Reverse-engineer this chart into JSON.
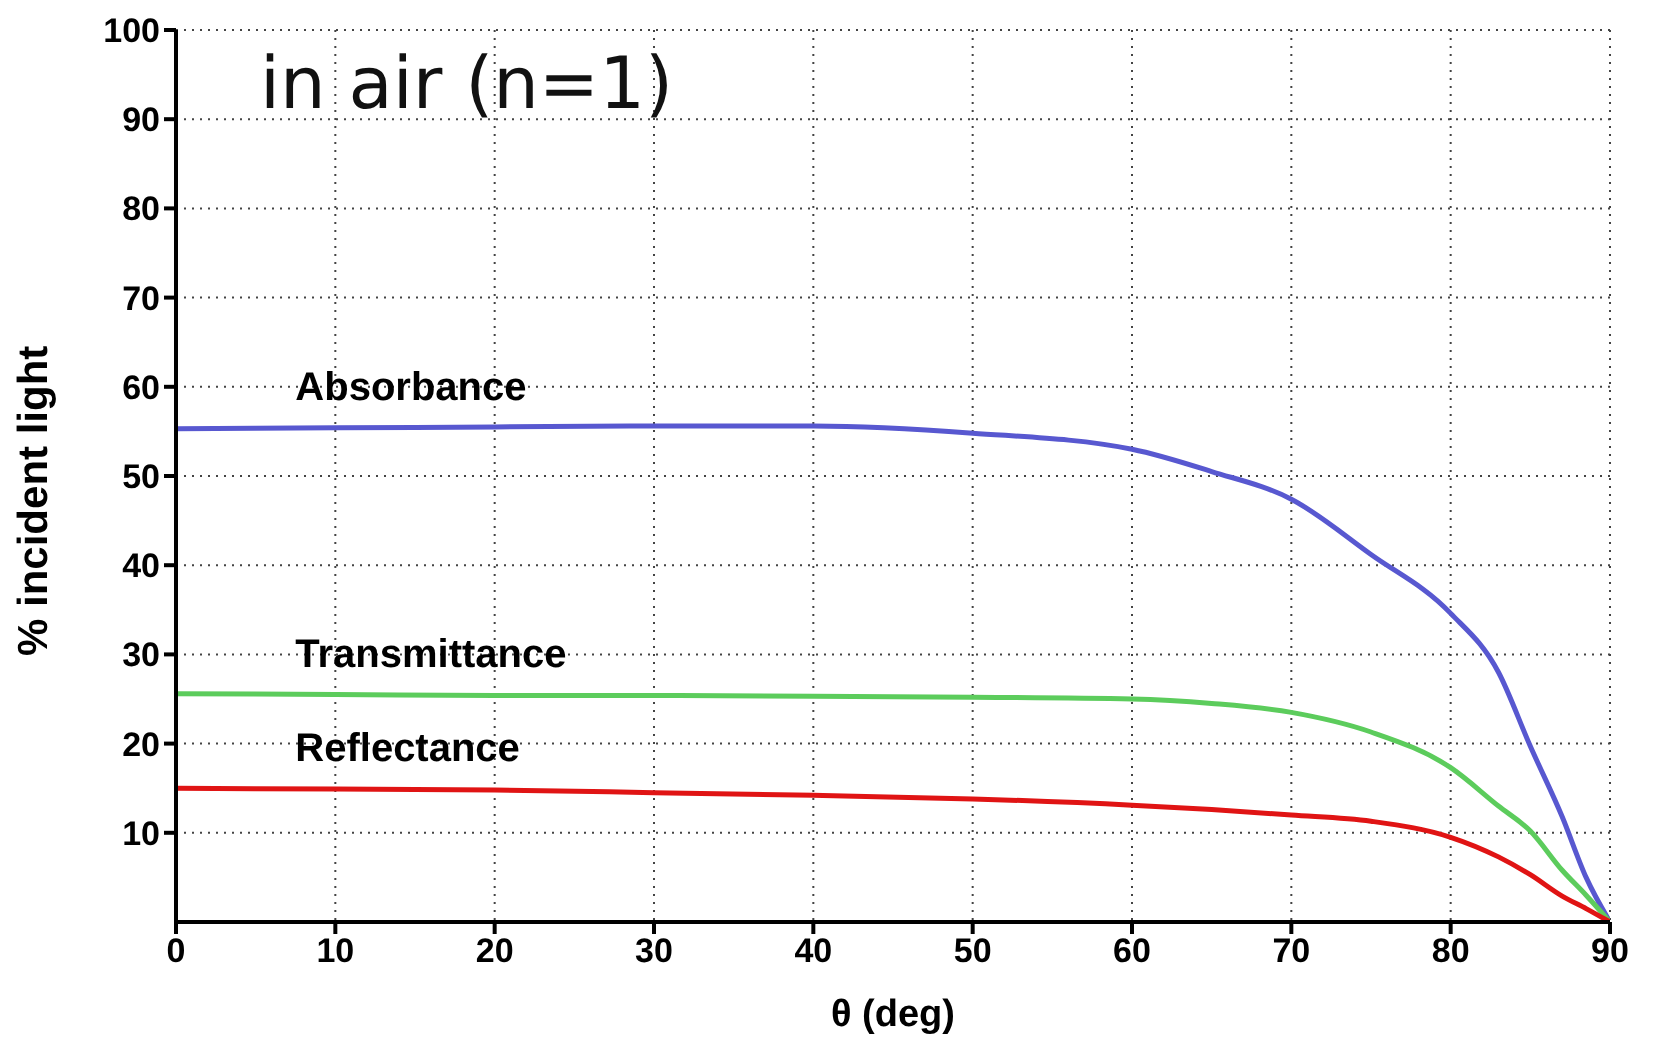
{
  "chart_data": {
    "type": "line",
    "xlabel": "θ (deg)",
    "ylabel": "% incident light",
    "annotations": [
      "in air (n=1)"
    ],
    "x": [
      0,
      10,
      20,
      30,
      40,
      50,
      60,
      65,
      70,
      75,
      80,
      83,
      85,
      87,
      88.5,
      90
    ],
    "series": [
      {
        "name": "Absorbance",
        "color": "#5858d0",
        "values": [
          55.3,
          55.4,
          55.5,
          55.6,
          55.6,
          54.8,
          53,
          50.5,
          47.4,
          41.2,
          34.6,
          28,
          19.7,
          11.8,
          5,
          0
        ]
      },
      {
        "name": "Transmittance",
        "color": "#5ccc5c",
        "values": [
          25.6,
          25.5,
          25.4,
          25.4,
          25.3,
          25.2,
          25,
          24.5,
          23.5,
          21.3,
          17.3,
          13,
          10.2,
          5.8,
          3,
          0
        ]
      },
      {
        "name": "Reflectance",
        "color": "#e01414",
        "values": [
          15,
          14.9,
          14.8,
          14.5,
          14.2,
          13.8,
          13.1,
          12.6,
          12,
          11.3,
          9.5,
          7.3,
          5.3,
          2.9,
          1.5,
          0
        ]
      }
    ],
    "xlim": [
      0,
      90
    ],
    "xticks": [
      0,
      10,
      20,
      30,
      40,
      50,
      60,
      70,
      80,
      90
    ],
    "ylim": [
      0,
      100
    ],
    "yticks": [
      10,
      20,
      30,
      40,
      50,
      60,
      70,
      80,
      90,
      100
    ],
    "grid": true,
    "legend": false,
    "marker": "none",
    "line_style": "solid"
  }
}
